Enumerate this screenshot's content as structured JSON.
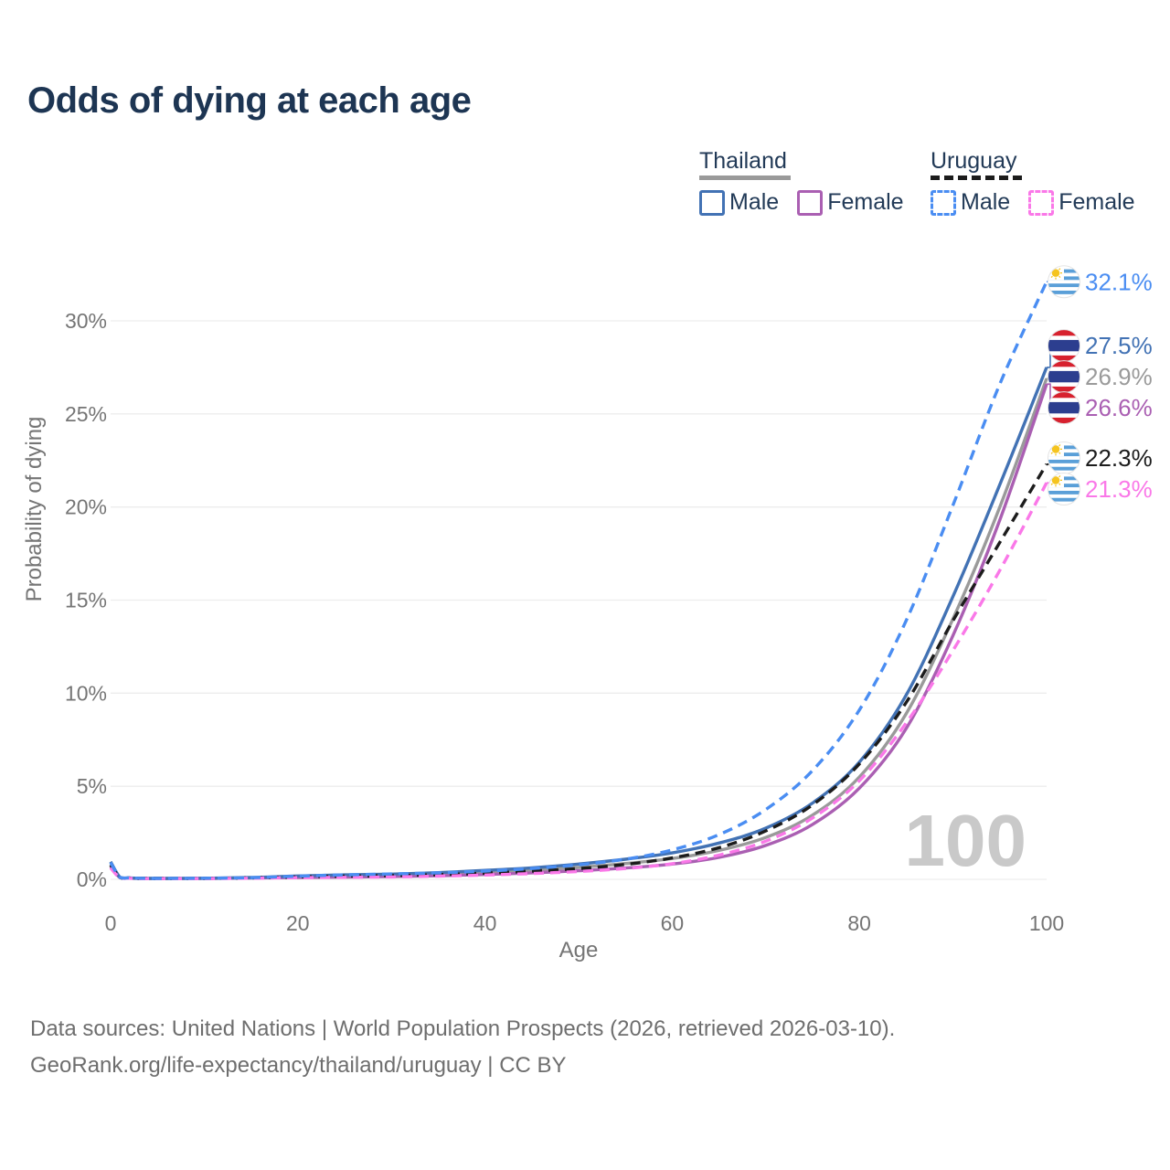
{
  "title": "Odds of dying at each age",
  "legend": {
    "groups": [
      {
        "country": "Thailand",
        "line_style": "solid",
        "line_color": "#9a9a9a",
        "items": [
          {
            "label": "Male",
            "color": "#4272b4",
            "style": "solid"
          },
          {
            "label": "Female",
            "color": "#aa5fb2",
            "style": "solid"
          }
        ]
      },
      {
        "country": "Uruguay",
        "line_style": "dashed",
        "line_color": "#1c1c1c",
        "items": [
          {
            "label": "Male",
            "color": "#4a8df2",
            "style": "dashed"
          },
          {
            "label": "Female",
            "color": "#fa78e8",
            "style": "dashed"
          }
        ]
      }
    ]
  },
  "chart_data": {
    "type": "line",
    "title": "Odds of dying at each age",
    "xlabel": "Age",
    "ylabel": "Probability of dying",
    "xlim": [
      0,
      100
    ],
    "ylim": [
      0,
      30
    ],
    "grid": "horizontal",
    "x_ticks": [
      0,
      20,
      40,
      60,
      80,
      100
    ],
    "y_tick_values": [
      0,
      5,
      10,
      15,
      20,
      25,
      30
    ],
    "y_tick_labels": [
      "0%",
      "5%",
      "10%",
      "15%",
      "20%",
      "25%",
      "30%"
    ],
    "hover_age_label": "100",
    "x": [
      0,
      1,
      2,
      3,
      5,
      10,
      15,
      20,
      25,
      30,
      35,
      40,
      45,
      50,
      55,
      60,
      65,
      70,
      75,
      80,
      85,
      90,
      95,
      100
    ],
    "series": [
      {
        "name": "Uruguay Male",
        "country": "uruguay",
        "sex": "male",
        "color": "#4a8df2",
        "dash": true,
        "end_label": "32.1%",
        "values": [
          0.9,
          0.11,
          0.08,
          0.06,
          0.05,
          0.06,
          0.09,
          0.17,
          0.24,
          0.29,
          0.35,
          0.44,
          0.58,
          0.78,
          1.08,
          1.58,
          2.4,
          3.75,
          5.85,
          9.1,
          13.9,
          20.1,
          26.6,
          32.1
        ]
      },
      {
        "name": "Thailand Male",
        "country": "thailand",
        "sex": "male",
        "color": "#4272b4",
        "dash": false,
        "end_label": "27.5%",
        "values": [
          0.95,
          0.12,
          0.08,
          0.06,
          0.05,
          0.06,
          0.1,
          0.18,
          0.24,
          0.28,
          0.36,
          0.48,
          0.62,
          0.82,
          1.08,
          1.42,
          1.95,
          2.75,
          4.1,
          6.3,
          9.9,
          15.2,
          21.2,
          27.5
        ]
      },
      {
        "name": "Thailand",
        "country": "thailand",
        "sex": "both",
        "color": "#9a9a9a",
        "dash": false,
        "end_label": "26.9%",
        "values": [
          0.82,
          0.1,
          0.07,
          0.05,
          0.05,
          0.05,
          0.08,
          0.14,
          0.18,
          0.22,
          0.28,
          0.37,
          0.49,
          0.64,
          0.85,
          1.12,
          1.55,
          2.25,
          3.45,
          5.5,
          8.9,
          14.0,
          20.0,
          26.9
        ]
      },
      {
        "name": "Thailand Female",
        "country": "thailand",
        "sex": "female",
        "color": "#aa5fb2",
        "dash": false,
        "end_label": "26.6%",
        "values": [
          0.7,
          0.09,
          0.06,
          0.05,
          0.04,
          0.05,
          0.07,
          0.1,
          0.12,
          0.15,
          0.19,
          0.26,
          0.35,
          0.46,
          0.61,
          0.82,
          1.18,
          1.82,
          2.95,
          4.9,
          8.1,
          13.1,
          19.3,
          26.6
        ]
      },
      {
        "name": "Uruguay",
        "country": "uruguay",
        "sex": "both",
        "color": "#1c1c1c",
        "dash": true,
        "end_label": "22.3%",
        "values": [
          0.76,
          0.1,
          0.07,
          0.05,
          0.05,
          0.05,
          0.08,
          0.13,
          0.17,
          0.2,
          0.25,
          0.33,
          0.44,
          0.58,
          0.8,
          1.15,
          1.7,
          2.6,
          4.0,
          6.2,
          9.5,
          13.9,
          18.1,
          22.3
        ]
      },
      {
        "name": "Uruguay Female",
        "country": "uruguay",
        "sex": "female",
        "color": "#fa78e8",
        "dash": true,
        "end_label": "21.3%",
        "values": [
          0.62,
          0.08,
          0.06,
          0.04,
          0.04,
          0.04,
          0.06,
          0.09,
          0.11,
          0.13,
          0.17,
          0.23,
          0.31,
          0.42,
          0.58,
          0.84,
          1.3,
          2.05,
          3.3,
          5.3,
          8.4,
          12.3,
          16.6,
          21.3
        ]
      }
    ],
    "colors": {
      "grid": "#ededed",
      "axis_text": "#757575",
      "watermark": "#c9c9c9",
      "uruguay_flag_blue": "#5a9fd8",
      "uruguay_flag_sun": "#f5c41e",
      "thailand_flag_red": "#d7212e",
      "thailand_flag_navy": "#2c3e8f"
    }
  },
  "footer": {
    "line1": "Data sources: United Nations | World Population Prospects (2026, retrieved 2026-03-10).",
    "line2": "GeoRank.org/life-expectancy/thailand/uruguay | CC BY"
  }
}
